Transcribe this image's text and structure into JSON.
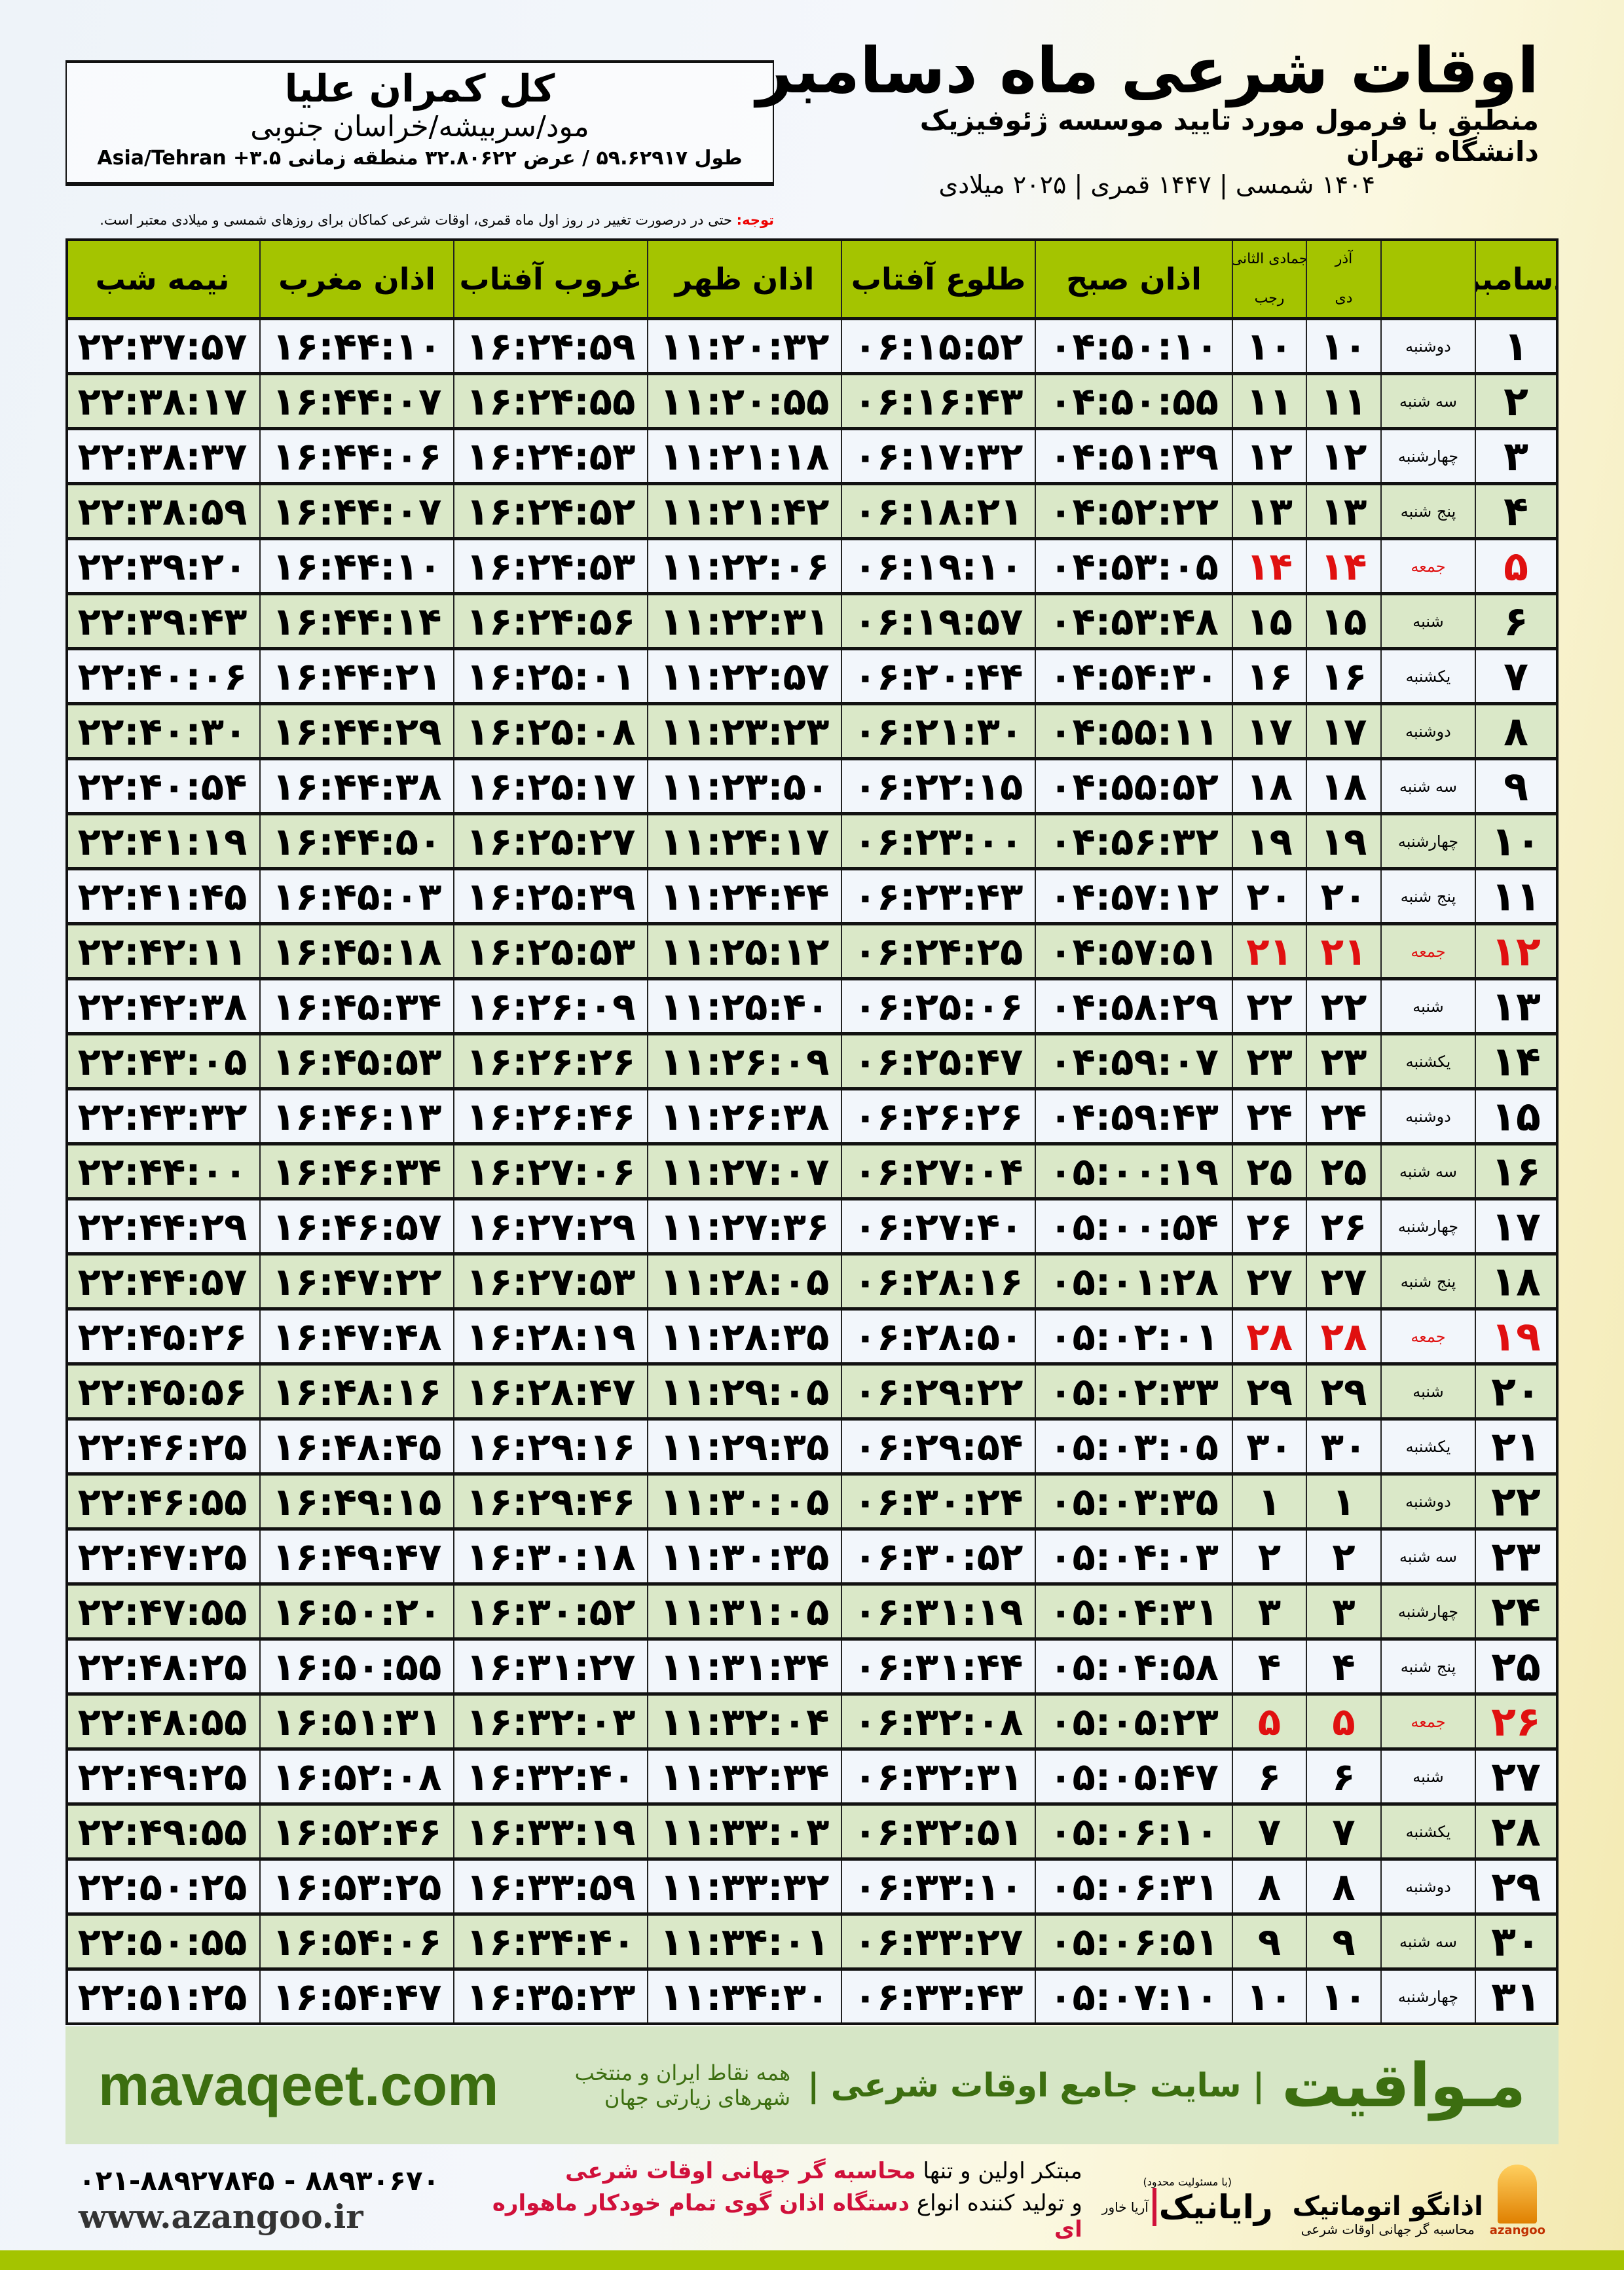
{
  "info": {
    "name": "کل کمران علیا",
    "region": "مود/سربیشه/خراسان جنوبی",
    "coords": "طول ۵۹.۶۲۹۱۷ / عرض ۳۲.۸۰۶۲۲ منطقه زمانی ۳.۵+ Asia/Tehran"
  },
  "title": {
    "main": "اوقات شرعی ماه دسامبر",
    "sub": "منطبق با فرمول مورد تایید موسسه ژئوفیزیک دانشگاه تهران",
    "years": "۱۴۰۴ شمسی | ۱۴۴۷ قمری | ۲۰۲۵ میلادی"
  },
  "note": {
    "label": "توجه:",
    "text": " حتی در درصورت تغییر در روز اول ماه قمری، اوقات شرعی کماکان برای روزهای شمسی و میلادی معتبر است."
  },
  "headers": {
    "day": "دسامبر",
    "dey_top": "آذر",
    "dey": "دی",
    "rajab_top": "جمادی الثانی",
    "rajab": "رجب",
    "fajr": "اذان صبح",
    "sunrise": "طلوع آفتاب",
    "dhuhr": "اذان ظهر",
    "sunset": "غروب آفتاب",
    "maghrib": "اذان مغرب",
    "midnight": "نیمه شب"
  },
  "holiday_color": "#e01010",
  "rows": [
    [
      "۱",
      "دوشنبه",
      "۱۰",
      "۱۰",
      "۰۴:۵۰:۱۰",
      "۰۶:۱۵:۵۲",
      "۱۱:۲۰:۳۲",
      "۱۶:۲۴:۵۹",
      "۱۶:۴۴:۱۰",
      "۲۲:۳۷:۵۷",
      false
    ],
    [
      "۲",
      "سه شنبه",
      "۱۱",
      "۱۱",
      "۰۴:۵۰:۵۵",
      "۰۶:۱۶:۴۳",
      "۱۱:۲۰:۵۵",
      "۱۶:۲۴:۵۵",
      "۱۶:۴۴:۰۷",
      "۲۲:۳۸:۱۷",
      false
    ],
    [
      "۳",
      "چهارشنبه",
      "۱۲",
      "۱۲",
      "۰۴:۵۱:۳۹",
      "۰۶:۱۷:۳۲",
      "۱۱:۲۱:۱۸",
      "۱۶:۲۴:۵۳",
      "۱۶:۴۴:۰۶",
      "۲۲:۳۸:۳۷",
      false
    ],
    [
      "۴",
      "پنج شنبه",
      "۱۳",
      "۱۳",
      "۰۴:۵۲:۲۲",
      "۰۶:۱۸:۲۱",
      "۱۱:۲۱:۴۲",
      "۱۶:۲۴:۵۲",
      "۱۶:۴۴:۰۷",
      "۲۲:۳۸:۵۹",
      false
    ],
    [
      "۵",
      "جمعه",
      "۱۴",
      "۱۴",
      "۰۴:۵۳:۰۵",
      "۰۶:۱۹:۱۰",
      "۱۱:۲۲:۰۶",
      "۱۶:۲۴:۵۳",
      "۱۶:۴۴:۱۰",
      "۲۲:۳۹:۲۰",
      true
    ],
    [
      "۶",
      "شنبه",
      "۱۵",
      "۱۵",
      "۰۴:۵۳:۴۸",
      "۰۶:۱۹:۵۷",
      "۱۱:۲۲:۳۱",
      "۱۶:۲۴:۵۶",
      "۱۶:۴۴:۱۴",
      "۲۲:۳۹:۴۳",
      false
    ],
    [
      "۷",
      "یکشنبه",
      "۱۶",
      "۱۶",
      "۰۴:۵۴:۳۰",
      "۰۶:۲۰:۴۴",
      "۱۱:۲۲:۵۷",
      "۱۶:۲۵:۰۱",
      "۱۶:۴۴:۲۱",
      "۲۲:۴۰:۰۶",
      false
    ],
    [
      "۸",
      "دوشنبه",
      "۱۷",
      "۱۷",
      "۰۴:۵۵:۱۱",
      "۰۶:۲۱:۳۰",
      "۱۱:۲۳:۲۳",
      "۱۶:۲۵:۰۸",
      "۱۶:۴۴:۲۹",
      "۲۲:۴۰:۳۰",
      false
    ],
    [
      "۹",
      "سه شنبه",
      "۱۸",
      "۱۸",
      "۰۴:۵۵:۵۲",
      "۰۶:۲۲:۱۵",
      "۱۱:۲۳:۵۰",
      "۱۶:۲۵:۱۷",
      "۱۶:۴۴:۳۸",
      "۲۲:۴۰:۵۴",
      false
    ],
    [
      "۱۰",
      "چهارشنبه",
      "۱۹",
      "۱۹",
      "۰۴:۵۶:۳۲",
      "۰۶:۲۳:۰۰",
      "۱۱:۲۴:۱۷",
      "۱۶:۲۵:۲۷",
      "۱۶:۴۴:۵۰",
      "۲۲:۴۱:۱۹",
      false
    ],
    [
      "۱۱",
      "پنج شنبه",
      "۲۰",
      "۲۰",
      "۰۴:۵۷:۱۲",
      "۰۶:۲۳:۴۳",
      "۱۱:۲۴:۴۴",
      "۱۶:۲۵:۳۹",
      "۱۶:۴۵:۰۳",
      "۲۲:۴۱:۴۵",
      false
    ],
    [
      "۱۲",
      "جمعه",
      "۲۱",
      "۲۱",
      "۰۴:۵۷:۵۱",
      "۰۶:۲۴:۲۵",
      "۱۱:۲۵:۱۲",
      "۱۶:۲۵:۵۳",
      "۱۶:۴۵:۱۸",
      "۲۲:۴۲:۱۱",
      true
    ],
    [
      "۱۳",
      "شنبه",
      "۲۲",
      "۲۲",
      "۰۴:۵۸:۲۹",
      "۰۶:۲۵:۰۶",
      "۱۱:۲۵:۴۰",
      "۱۶:۲۶:۰۹",
      "۱۶:۴۵:۳۴",
      "۲۲:۴۲:۳۸",
      false
    ],
    [
      "۱۴",
      "یکشنبه",
      "۲۳",
      "۲۳",
      "۰۴:۵۹:۰۷",
      "۰۶:۲۵:۴۷",
      "۱۱:۲۶:۰۹",
      "۱۶:۲۶:۲۶",
      "۱۶:۴۵:۵۳",
      "۲۲:۴۳:۰۵",
      false
    ],
    [
      "۱۵",
      "دوشنبه",
      "۲۴",
      "۲۴",
      "۰۴:۵۹:۴۳",
      "۰۶:۲۶:۲۶",
      "۱۱:۲۶:۳۸",
      "۱۶:۲۶:۴۶",
      "۱۶:۴۶:۱۳",
      "۲۲:۴۳:۳۲",
      false
    ],
    [
      "۱۶",
      "سه شنبه",
      "۲۵",
      "۲۵",
      "۰۵:۰۰:۱۹",
      "۰۶:۲۷:۰۴",
      "۱۱:۲۷:۰۷",
      "۱۶:۲۷:۰۶",
      "۱۶:۴۶:۳۴",
      "۲۲:۴۴:۰۰",
      false
    ],
    [
      "۱۷",
      "چهارشنبه",
      "۲۶",
      "۲۶",
      "۰۵:۰۰:۵۴",
      "۰۶:۲۷:۴۰",
      "۱۱:۲۷:۳۶",
      "۱۶:۲۷:۲۹",
      "۱۶:۴۶:۵۷",
      "۲۲:۴۴:۲۹",
      false
    ],
    [
      "۱۸",
      "پنج شنبه",
      "۲۷",
      "۲۷",
      "۰۵:۰۱:۲۸",
      "۰۶:۲۸:۱۶",
      "۱۱:۲۸:۰۵",
      "۱۶:۲۷:۵۳",
      "۱۶:۴۷:۲۲",
      "۲۲:۴۴:۵۷",
      false
    ],
    [
      "۱۹",
      "جمعه",
      "۲۸",
      "۲۸",
      "۰۵:۰۲:۰۱",
      "۰۶:۲۸:۵۰",
      "۱۱:۲۸:۳۵",
      "۱۶:۲۸:۱۹",
      "۱۶:۴۷:۴۸",
      "۲۲:۴۵:۲۶",
      true
    ],
    [
      "۲۰",
      "شنبه",
      "۲۹",
      "۲۹",
      "۰۵:۰۲:۳۳",
      "۰۶:۲۹:۲۲",
      "۱۱:۲۹:۰۵",
      "۱۶:۲۸:۴۷",
      "۱۶:۴۸:۱۶",
      "۲۲:۴۵:۵۶",
      false
    ],
    [
      "۲۱",
      "یکشنبه",
      "۳۰",
      "۳۰",
      "۰۵:۰۳:۰۵",
      "۰۶:۲۹:۵۴",
      "۱۱:۲۹:۳۵",
      "۱۶:۲۹:۱۶",
      "۱۶:۴۸:۴۵",
      "۲۲:۴۶:۲۵",
      false
    ],
    [
      "۲۲",
      "دوشنبه",
      "۱",
      "۱",
      "۰۵:۰۳:۳۵",
      "۰۶:۳۰:۲۴",
      "۱۱:۳۰:۰۵",
      "۱۶:۲۹:۴۶",
      "۱۶:۴۹:۱۵",
      "۲۲:۴۶:۵۵",
      false
    ],
    [
      "۲۳",
      "سه شنبه",
      "۲",
      "۲",
      "۰۵:۰۴:۰۳",
      "۰۶:۳۰:۵۲",
      "۱۱:۳۰:۳۵",
      "۱۶:۳۰:۱۸",
      "۱۶:۴۹:۴۷",
      "۲۲:۴۷:۲۵",
      false
    ],
    [
      "۲۴",
      "چهارشنبه",
      "۳",
      "۳",
      "۰۵:۰۴:۳۱",
      "۰۶:۳۱:۱۹",
      "۱۱:۳۱:۰۵",
      "۱۶:۳۰:۵۲",
      "۱۶:۵۰:۲۰",
      "۲۲:۴۷:۵۵",
      false
    ],
    [
      "۲۵",
      "پنج شنبه",
      "۴",
      "۴",
      "۰۵:۰۴:۵۸",
      "۰۶:۳۱:۴۴",
      "۱۱:۳۱:۳۴",
      "۱۶:۳۱:۲۷",
      "۱۶:۵۰:۵۵",
      "۲۲:۴۸:۲۵",
      false
    ],
    [
      "۲۶",
      "جمعه",
      "۵",
      "۵",
      "۰۵:۰۵:۲۳",
      "۰۶:۳۲:۰۸",
      "۱۱:۳۲:۰۴",
      "۱۶:۳۲:۰۳",
      "۱۶:۵۱:۳۱",
      "۲۲:۴۸:۵۵",
      true
    ],
    [
      "۲۷",
      "شنبه",
      "۶",
      "۶",
      "۰۵:۰۵:۴۷",
      "۰۶:۳۲:۳۱",
      "۱۱:۳۲:۳۴",
      "۱۶:۳۲:۴۰",
      "۱۶:۵۲:۰۸",
      "۲۲:۴۹:۲۵",
      false
    ],
    [
      "۲۸",
      "یکشنبه",
      "۷",
      "۷",
      "۰۵:۰۶:۱۰",
      "۰۶:۳۲:۵۱",
      "۱۱:۳۳:۰۳",
      "۱۶:۳۳:۱۹",
      "۱۶:۵۲:۴۶",
      "۲۲:۴۹:۵۵",
      false
    ],
    [
      "۲۹",
      "دوشنبه",
      "۸",
      "۸",
      "۰۵:۰۶:۳۱",
      "۰۶:۳۳:۱۰",
      "۱۱:۳۳:۳۲",
      "۱۶:۳۳:۵۹",
      "۱۶:۵۳:۲۵",
      "۲۲:۵۰:۲۵",
      false
    ],
    [
      "۳۰",
      "سه شنبه",
      "۹",
      "۹",
      "۰۵:۰۶:۵۱",
      "۰۶:۳۳:۲۷",
      "۱۱:۳۴:۰۱",
      "۱۶:۳۴:۴۰",
      "۱۶:۵۴:۰۶",
      "۲۲:۵۰:۵۵",
      false
    ],
    [
      "۳۱",
      "چهارشنبه",
      "۱۰",
      "۱۰",
      "۰۵:۰۷:۱۰",
      "۰۶:۳۳:۴۳",
      "۱۱:۳۴:۳۰",
      "۱۶:۳۵:۲۳",
      "۱۶:۵۴:۴۷",
      "۲۲:۵۱:۲۵",
      false
    ]
  ],
  "banner": {
    "brand": "مـواقیت",
    "tagline": "| سایت جامع اوقات شرعی |",
    "tagline2": "همه نقاط ایران و منتخب شهرهای زیارتی جهان",
    "site": "mavaqeet.com"
  },
  "footer": {
    "line1_a": "مبتکر اولین و تنها ",
    "line1_b": "محاسبه گر جهانی اوقات شرعی",
    "line2_a": "و تولید کننده انواع ",
    "line2_b": "دستگاه اذان گوی تمام خودکار ماهواره ای",
    "phone": "۰۲۱-۸۸۹۲۷۸۴۵ - ۸۸۹۳۰۶۷۰",
    "web": "www.azangoo.ir",
    "logo1": "اذانگو اتوماتیک",
    "logo1_sub": "محاسبه گر جهانی اوقات شرعی",
    "logo1_en": "azangoo",
    "logo2": "رایانیک",
    "logo2_sub": "آریا خاور",
    "logo2_top": "(با مسئولیت محدود)"
  }
}
